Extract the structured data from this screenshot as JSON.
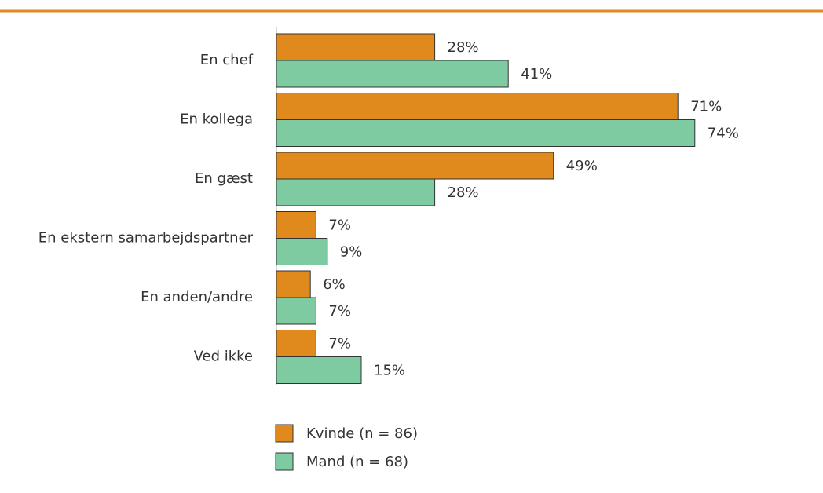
{
  "chart_data": {
    "type": "bar",
    "orientation": "horizontal",
    "categories": [
      "En chef",
      "En kollega",
      "En gæst",
      "En ekstern samarbejdspartner",
      "En anden/andre",
      "Ved ikke"
    ],
    "series": [
      {
        "name": "Kvinde (n = 86)",
        "color": "#e0891c",
        "values": [
          28,
          71,
          49,
          7,
          6,
          7
        ],
        "value_labels": [
          "28%",
          "71%",
          "49%",
          "7%",
          "6%",
          "7%"
        ]
      },
      {
        "name": "Mand (n = 68)",
        "color": "#7ecba1",
        "values": [
          41,
          74,
          28,
          9,
          7,
          15
        ],
        "value_labels": [
          "41%",
          "74%",
          "28%",
          "9%",
          "7%",
          "15%"
        ]
      }
    ]
  }
}
